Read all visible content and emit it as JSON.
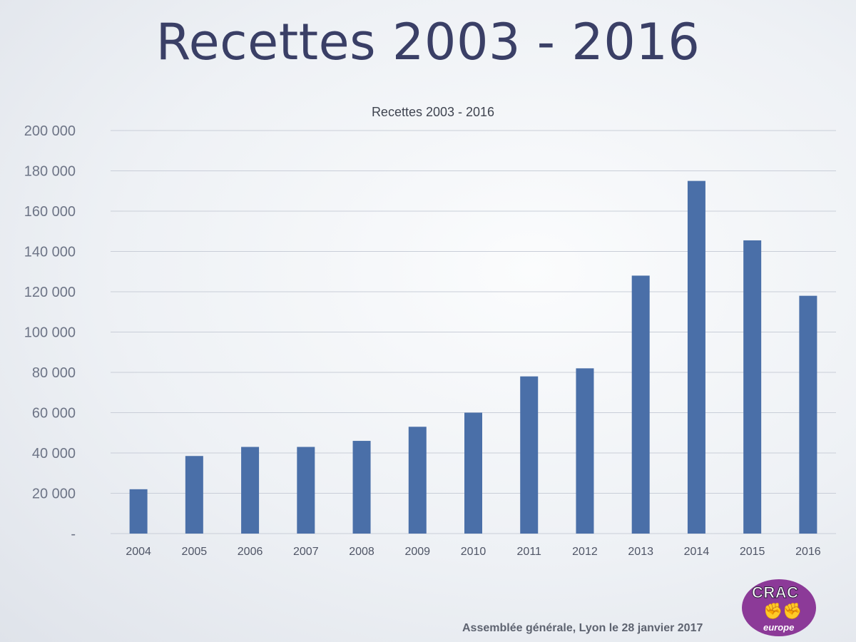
{
  "slide": {
    "title": "Recettes 2003 - 2016",
    "footer": "Assemblée générale, Lyon le 28 janvier 2017",
    "logo": {
      "name": "CRAC",
      "sub": "europe",
      "fists": "✊✊",
      "color": "#8c3a98"
    }
  },
  "chart_data": {
    "type": "bar",
    "title": "Recettes 2003 - 2016",
    "xlabel": "",
    "ylabel": "",
    "categories": [
      "2004",
      "2005",
      "2006",
      "2007",
      "2008",
      "2009",
      "2010",
      "2011",
      "2012",
      "2013",
      "2014",
      "2015",
      "2016"
    ],
    "values": [
      22000,
      38500,
      43000,
      43000,
      46000,
      53000,
      60000,
      78000,
      82000,
      128000,
      175000,
      145500,
      118000
    ],
    "ylim": [
      0,
      200000
    ],
    "yticks": [
      0,
      20000,
      40000,
      60000,
      80000,
      100000,
      120000,
      140000,
      160000,
      180000,
      200000
    ],
    "ytick_labels": [
      "-",
      "20 000",
      "40 000",
      "60 000",
      "80 000",
      "100 000",
      "120 000",
      "140 000",
      "160 000",
      "180 000",
      "200 000"
    ],
    "grid": true,
    "legend": "none",
    "bar_color": "#4a6fa8"
  }
}
